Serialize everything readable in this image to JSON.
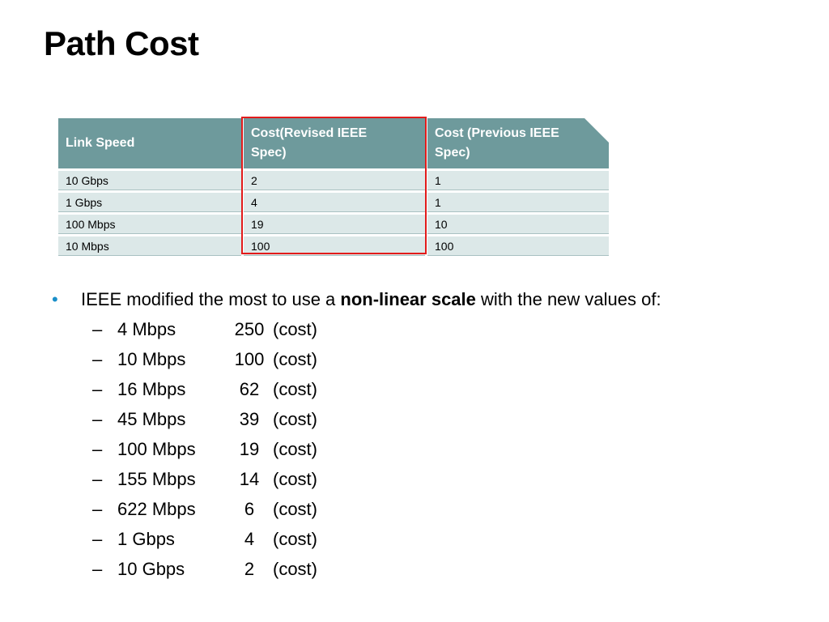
{
  "title": "Path Cost",
  "table": {
    "headers": [
      "Link Speed",
      "Cost(Revised IEEE Spec)",
      "Cost (Previous IEEE Spec)"
    ],
    "header_lines": {
      "col2": [
        "Cost(Revised IEEE",
        "Spec)"
      ],
      "col3": [
        "Cost (Previous IEEE",
        "Spec)"
      ]
    },
    "rows": [
      [
        "10 Gbps",
        "2",
        "1"
      ],
      [
        "1 Gbps",
        "4",
        "1"
      ],
      [
        "100 Mbps",
        "19",
        "10"
      ],
      [
        "10 Mbps",
        "100",
        "100"
      ]
    ],
    "header_color": "#6e9a9c",
    "row_color": "#dce8e8",
    "highlight_color": "#e21b1b"
  },
  "bullet": {
    "marker": "•",
    "text_before": "IEEE modified the most to use a ",
    "text_bold": "non-linear scale",
    "text_after": " with the new values of:",
    "marker_color": "#1a8fc9"
  },
  "sub_items": [
    {
      "dash": "–",
      "speed": "4 Mbps",
      "cost": "250",
      "unit": "(cost)"
    },
    {
      "dash": "–",
      "speed": "10 Mbps",
      "cost": "100",
      "unit": "(cost)"
    },
    {
      "dash": "–",
      "speed": "16 Mbps",
      "cost": "62",
      "unit": "(cost)"
    },
    {
      "dash": "–",
      "speed": "45 Mbps",
      "cost": "39",
      "unit": "(cost)"
    },
    {
      "dash": "–",
      "speed": "100 Mbps",
      "cost": "19",
      "unit": "(cost)"
    },
    {
      "dash": "–",
      "speed": "155 Mbps",
      "cost": "14",
      "unit": "(cost)"
    },
    {
      "dash": "–",
      "speed": "622 Mbps",
      "cost": "6",
      "unit": "(cost)"
    },
    {
      "dash": "–",
      "speed": "1 Gbps",
      "cost": "4",
      "unit": "(cost)"
    },
    {
      "dash": "–",
      "speed": "10 Gbps",
      "cost": "2",
      "unit": "(cost)"
    }
  ]
}
